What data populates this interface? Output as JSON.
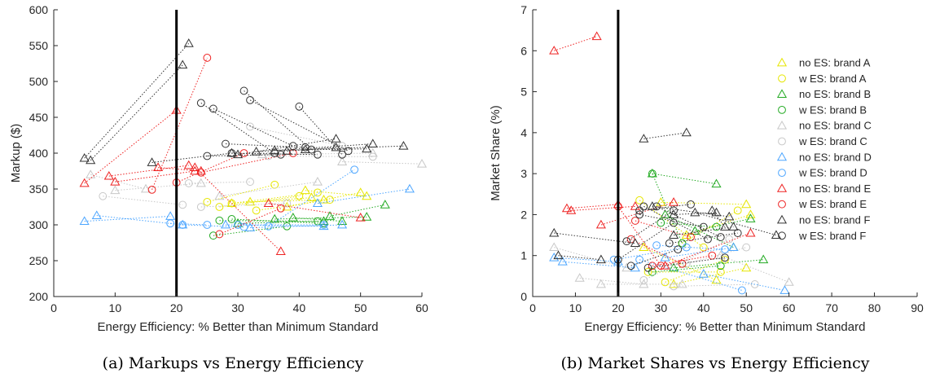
{
  "figure_captions": [
    "(a) Markups vs Energy Efficiency",
    "(b) Market Shares vs Energy Efficiency"
  ],
  "series_styles": [
    {
      "name": "no ES: brand A",
      "marker": "triangle",
      "color": "#e6e600"
    },
    {
      "name": "w ES: brand A",
      "marker": "circle",
      "color": "#e6e600"
    },
    {
      "name": "no ES: brand B",
      "marker": "triangle",
      "color": "#22aa22"
    },
    {
      "name": "w ES: brand B",
      "marker": "circle",
      "color": "#22aa22"
    },
    {
      "name": "no ES: brand C",
      "marker": "triangle",
      "color": "#c8c8c8"
    },
    {
      "name": "w ES: brand C",
      "marker": "circle",
      "color": "#c8c8c8"
    },
    {
      "name": "no ES: brand D",
      "marker": "triangle",
      "color": "#4da6ff"
    },
    {
      "name": "w ES: brand D",
      "marker": "circle",
      "color": "#4da6ff"
    },
    {
      "name": "no ES: brand E",
      "marker": "triangle",
      "color": "#ee2222"
    },
    {
      "name": "w ES: brand E",
      "marker": "circle",
      "color": "#ee2222"
    },
    {
      "name": "no ES: brand F",
      "marker": "triangle",
      "color": "#333333"
    },
    {
      "name": "w ES: brand F",
      "marker": "circle",
      "color": "#333333"
    }
  ],
  "chart_data": [
    {
      "type": "scatter",
      "xlabel": "Energy Efficiency: % Better than Minimum Standard",
      "ylabel": "Markup ($)",
      "xlim": [
        0,
        60
      ],
      "ylim": [
        200,
        600
      ],
      "xticks": [
        0,
        10,
        20,
        30,
        40,
        50,
        60
      ],
      "yticks": [
        200,
        250,
        300,
        350,
        400,
        450,
        500,
        550,
        600
      ],
      "vline_x": 20,
      "grid": false,
      "legend": "none",
      "pairs": [
        {
          "s": 0,
          "x1": 29,
          "y1": 330,
          "x2": 42,
          "y2": 338
        },
        {
          "s": 0,
          "x1": 32,
          "y1": 332,
          "x2": 44,
          "y2": 335
        },
        {
          "s": 0,
          "x1": 38,
          "y1": 325,
          "x2": 50,
          "y2": 345
        },
        {
          "s": 0,
          "x1": 41,
          "y1": 348,
          "x2": 51,
          "y2": 340
        },
        {
          "s": 1,
          "x1": 25,
          "y1": 332,
          "x2": 36,
          "y2": 356
        },
        {
          "s": 1,
          "x1": 27,
          "y1": 325,
          "x2": 40,
          "y2": 340
        },
        {
          "s": 1,
          "x1": 33,
          "y1": 320,
          "x2": 45,
          "y2": 335
        },
        {
          "s": 1,
          "x1": 29,
          "y1": 330,
          "x2": 43,
          "y2": 345
        },
        {
          "s": 2,
          "x1": 30,
          "y1": 302,
          "x2": 44,
          "y2": 305
        },
        {
          "s": 2,
          "x1": 39,
          "y1": 310,
          "x2": 47,
          "y2": 305
        },
        {
          "s": 2,
          "x1": 45,
          "y1": 312,
          "x2": 54,
          "y2": 328
        },
        {
          "s": 2,
          "x1": 36,
          "y1": 308,
          "x2": 51,
          "y2": 311
        },
        {
          "s": 3,
          "x1": 26,
          "y1": 285,
          "x2": 38,
          "y2": 298
        },
        {
          "s": 3,
          "x1": 27,
          "y1": 306,
          "x2": 43,
          "y2": 305
        },
        {
          "s": 3,
          "x1": 29,
          "y1": 308,
          "x2": 44,
          "y2": 302
        },
        {
          "s": 4,
          "x1": 6,
          "y1": 370,
          "x2": 15,
          "y2": 350
        },
        {
          "s": 4,
          "x1": 10,
          "y1": 348,
          "x2": 24,
          "y2": 358
        },
        {
          "s": 4,
          "x1": 27,
          "y1": 340,
          "x2": 43,
          "y2": 360
        },
        {
          "s": 4,
          "x1": 34,
          "y1": 398,
          "x2": 52,
          "y2": 400
        },
        {
          "s": 4,
          "x1": 47,
          "y1": 388,
          "x2": 60,
          "y2": 385
        },
        {
          "s": 5,
          "x1": 8,
          "y1": 340,
          "x2": 21,
          "y2": 328
        },
        {
          "s": 5,
          "x1": 22,
          "y1": 358,
          "x2": 32,
          "y2": 360
        },
        {
          "s": 5,
          "x1": 24,
          "y1": 325,
          "x2": 38,
          "y2": 330
        },
        {
          "s": 5,
          "x1": 32,
          "y1": 437,
          "x2": 47,
          "y2": 410
        },
        {
          "s": 5,
          "x1": 35,
          "y1": 396,
          "x2": 52,
          "y2": 395
        },
        {
          "s": 6,
          "x1": 5,
          "y1": 305,
          "x2": 19,
          "y2": 312
        },
        {
          "s": 6,
          "x1": 7,
          "y1": 313,
          "x2": 21,
          "y2": 300
        },
        {
          "s": 6,
          "x1": 28,
          "y1": 300,
          "x2": 44,
          "y2": 298
        },
        {
          "s": 6,
          "x1": 32,
          "y1": 296,
          "x2": 47,
          "y2": 300
        },
        {
          "s": 6,
          "x1": 43,
          "y1": 330,
          "x2": 58,
          "y2": 350
        },
        {
          "s": 7,
          "x1": 19,
          "y1": 302,
          "x2": 25,
          "y2": 300
        },
        {
          "s": 7,
          "x1": 21,
          "y1": 300,
          "x2": 31,
          "y2": 297
        },
        {
          "s": 7,
          "x1": 30,
          "y1": 300,
          "x2": 44,
          "y2": 300
        },
        {
          "s": 7,
          "x1": 35,
          "y1": 298,
          "x2": 49,
          "y2": 377
        },
        {
          "s": 8,
          "x1": 5,
          "y1": 358,
          "x2": 20,
          "y2": 460
        },
        {
          "s": 8,
          "x1": 9,
          "y1": 368,
          "x2": 22,
          "y2": 383
        },
        {
          "s": 8,
          "x1": 10,
          "y1": 360,
          "x2": 23,
          "y2": 375
        },
        {
          "s": 8,
          "x1": 17,
          "y1": 380,
          "x2": 24,
          "y2": 375
        },
        {
          "s": 8,
          "x1": 23,
          "y1": 380,
          "x2": 37,
          "y2": 263
        },
        {
          "s": 8,
          "x1": 35,
          "y1": 330,
          "x2": 50,
          "y2": 310
        },
        {
          "s": 9,
          "x1": 16,
          "y1": 349,
          "x2": 25,
          "y2": 533
        },
        {
          "s": 9,
          "x1": 20,
          "y1": 359,
          "x2": 31,
          "y2": 400
        },
        {
          "s": 9,
          "x1": 27,
          "y1": 287,
          "x2": 37,
          "y2": 323
        },
        {
          "s": 9,
          "x1": 24,
          "y1": 373,
          "x2": 39,
          "y2": 400
        },
        {
          "s": 10,
          "x1": 5,
          "y1": 393,
          "x2": 22,
          "y2": 553
        },
        {
          "s": 10,
          "x1": 6,
          "y1": 390,
          "x2": 21,
          "y2": 523
        },
        {
          "s": 10,
          "x1": 16,
          "y1": 387,
          "x2": 29,
          "y2": 400
        },
        {
          "s": 10,
          "x1": 30,
          "y1": 398,
          "x2": 46,
          "y2": 420
        },
        {
          "s": 10,
          "x1": 33,
          "y1": 402,
          "x2": 52,
          "y2": 413
        },
        {
          "s": 10,
          "x1": 36,
          "y1": 404,
          "x2": 51,
          "y2": 406
        },
        {
          "s": 10,
          "x1": 41,
          "y1": 405,
          "x2": 57,
          "y2": 410
        },
        {
          "s": 10,
          "x1": 38,
          "y1": 403,
          "x2": 46,
          "y2": 408
        },
        {
          "s": 11,
          "x1": 24,
          "y1": 470,
          "x2": 36,
          "y2": 400
        },
        {
          "s": 11,
          "x1": 26,
          "y1": 462,
          "x2": 39,
          "y2": 410
        },
        {
          "s": 11,
          "x1": 28,
          "y1": 413,
          "x2": 41,
          "y2": 408
        },
        {
          "s": 11,
          "x1": 31,
          "y1": 487,
          "x2": 42,
          "y2": 405
        },
        {
          "s": 11,
          "x1": 32,
          "y1": 474,
          "x2": 48,
          "y2": 403
        },
        {
          "s": 11,
          "x1": 40,
          "y1": 465,
          "x2": 47,
          "y2": 398
        },
        {
          "s": 11,
          "x1": 25,
          "y1": 396,
          "x2": 37,
          "y2": 398
        },
        {
          "s": 11,
          "x1": 29,
          "y1": 400,
          "x2": 43,
          "y2": 398
        }
      ]
    },
    {
      "type": "scatter",
      "xlabel": "Energy Efficiency: % Better than Minimum Standard",
      "ylabel": "Market Share (%)",
      "xlim": [
        0,
        90
      ],
      "ylim": [
        0,
        7
      ],
      "xticks": [
        0,
        10,
        20,
        30,
        40,
        50,
        60,
        70,
        80,
        90
      ],
      "yticks": [
        0,
        1,
        2,
        3,
        4,
        5,
        6,
        7
      ],
      "vline_x": 20,
      "grid": false,
      "legend": "top-right",
      "pairs": [
        {
          "s": 0,
          "x1": 30,
          "y1": 2.3,
          "x2": 50,
          "y2": 2.25
        },
        {
          "s": 0,
          "x1": 26,
          "y1": 1.2,
          "x2": 43,
          "y2": 0.4
        },
        {
          "s": 0,
          "x1": 33,
          "y1": 0.3,
          "x2": 50,
          "y2": 0.7
        },
        {
          "s": 0,
          "x1": 36,
          "y1": 1.5,
          "x2": 51,
          "y2": 2.0
        },
        {
          "s": 1,
          "x1": 25,
          "y1": 2.35,
          "x2": 40,
          "y2": 1.2
        },
        {
          "s": 1,
          "x1": 31,
          "y1": 0.35,
          "x2": 45,
          "y2": 0.9
        },
        {
          "s": 1,
          "x1": 35,
          "y1": 1.3,
          "x2": 48,
          "y2": 2.1
        },
        {
          "s": 1,
          "x1": 27,
          "y1": 0.6,
          "x2": 44,
          "y2": 0.6
        },
        {
          "s": 2,
          "x1": 33,
          "y1": 0.7,
          "x2": 54,
          "y2": 0.9
        },
        {
          "s": 2,
          "x1": 28,
          "y1": 3.0,
          "x2": 43,
          "y2": 2.75
        },
        {
          "s": 2,
          "x1": 38,
          "y1": 1.6,
          "x2": 51,
          "y2": 1.9
        },
        {
          "s": 2,
          "x1": 31,
          "y1": 2.0,
          "x2": 47,
          "y2": 1.2
        },
        {
          "s": 3,
          "x1": 28,
          "y1": 3.0,
          "x2": 35,
          "y2": 1.3
        },
        {
          "s": 3,
          "x1": 30,
          "y1": 1.8,
          "x2": 43,
          "y2": 1.7
        },
        {
          "s": 3,
          "x1": 28,
          "y1": 0.6,
          "x2": 44,
          "y2": 0.75
        },
        {
          "s": 4,
          "x1": 5,
          "y1": 1.2,
          "x2": 22,
          "y2": 0.7
        },
        {
          "s": 4,
          "x1": 11,
          "y1": 0.45,
          "x2": 26,
          "y2": 0.3
        },
        {
          "s": 4,
          "x1": 16,
          "y1": 0.3,
          "x2": 35,
          "y2": 0.3
        },
        {
          "s": 4,
          "x1": 44,
          "y1": 1.0,
          "x2": 60,
          "y2": 0.35
        },
        {
          "s": 5,
          "x1": 26,
          "y1": 0.4,
          "x2": 46,
          "y2": 1.4
        },
        {
          "s": 5,
          "x1": 33,
          "y1": 0.25,
          "x2": 52,
          "y2": 0.3
        },
        {
          "s": 5,
          "x1": 36,
          "y1": 0.8,
          "x2": 50,
          "y2": 1.2
        },
        {
          "s": 6,
          "x1": 5,
          "y1": 0.95,
          "x2": 20,
          "y2": 0.85
        },
        {
          "s": 6,
          "x1": 7,
          "y1": 0.85,
          "x2": 24,
          "y2": 0.7
        },
        {
          "s": 6,
          "x1": 31,
          "y1": 0.95,
          "x2": 47,
          "y2": 1.2
        },
        {
          "s": 6,
          "x1": 40,
          "y1": 0.55,
          "x2": 59,
          "y2": 0.15
        },
        {
          "s": 7,
          "x1": 19,
          "y1": 0.9,
          "x2": 36,
          "y2": 1.2
        },
        {
          "s": 7,
          "x1": 25,
          "y1": 0.9,
          "x2": 49,
          "y2": 0.15
        },
        {
          "s": 7,
          "x1": 29,
          "y1": 1.25,
          "x2": 45,
          "y2": 1.15
        },
        {
          "s": 8,
          "x1": 8,
          "y1": 2.15,
          "x2": 20,
          "y2": 2.25
        },
        {
          "s": 8,
          "x1": 9,
          "y1": 2.1,
          "x2": 24,
          "y2": 2.2
        },
        {
          "s": 8,
          "x1": 16,
          "y1": 1.75,
          "x2": 33,
          "y2": 2.3
        },
        {
          "s": 8,
          "x1": 5,
          "y1": 6.0,
          "x2": 15,
          "y2": 6.35
        },
        {
          "s": 8,
          "x1": 31,
          "y1": 0.75,
          "x2": 51,
          "y2": 1.55
        },
        {
          "s": 9,
          "x1": 20,
          "y1": 2.2,
          "x2": 30,
          "y2": 0.75
        },
        {
          "s": 9,
          "x1": 24,
          "y1": 1.85,
          "x2": 37,
          "y2": 1.45
        },
        {
          "s": 9,
          "x1": 23,
          "y1": 1.4,
          "x2": 35,
          "y2": 0.8
        },
        {
          "s": 9,
          "x1": 28,
          "y1": 0.75,
          "x2": 42,
          "y2": 1.0
        },
        {
          "s": 10,
          "x1": 5,
          "y1": 1.55,
          "x2": 24,
          "y2": 1.3
        },
        {
          "s": 10,
          "x1": 6,
          "y1": 1.0,
          "x2": 16,
          "y2": 0.9
        },
        {
          "s": 10,
          "x1": 26,
          "y1": 3.85,
          "x2": 36,
          "y2": 4.0
        },
        {
          "s": 10,
          "x1": 28,
          "y1": 2.2,
          "x2": 46,
          "y2": 1.95
        },
        {
          "s": 10,
          "x1": 33,
          "y1": 1.5,
          "x2": 47,
          "y2": 1.7
        },
        {
          "s": 10,
          "x1": 38,
          "y1": 2.05,
          "x2": 57,
          "y2": 1.5
        },
        {
          "s": 10,
          "x1": 33,
          "y1": 2.0,
          "x2": 43,
          "y2": 2.05
        },
        {
          "s": 10,
          "x1": 42,
          "y1": 2.1,
          "x2": 45,
          "y2": 1.7
        },
        {
          "s": 11,
          "x1": 20,
          "y1": 0.9,
          "x2": 33,
          "y2": 1.8
        },
        {
          "s": 11,
          "x1": 22,
          "y1": 1.35,
          "x2": 33,
          "y2": 2.1
        },
        {
          "s": 11,
          "x1": 25,
          "y1": 2.1,
          "x2": 37,
          "y2": 2.25
        },
        {
          "s": 11,
          "x1": 26,
          "y1": 2.2,
          "x2": 41,
          "y2": 1.4
        },
        {
          "s": 11,
          "x1": 29,
          "y1": 2.2,
          "x2": 44,
          "y2": 1.45
        },
        {
          "s": 11,
          "x1": 23,
          "y1": 0.75,
          "x2": 34,
          "y2": 1.15
        },
        {
          "s": 11,
          "x1": 27,
          "y1": 0.7,
          "x2": 45,
          "y2": 0.95
        },
        {
          "s": 11,
          "x1": 32,
          "y1": 1.3,
          "x2": 48,
          "y2": 1.55
        },
        {
          "s": 11,
          "x1": 25,
          "y1": 2.0,
          "x2": 40,
          "y2": 1.7
        }
      ]
    }
  ]
}
